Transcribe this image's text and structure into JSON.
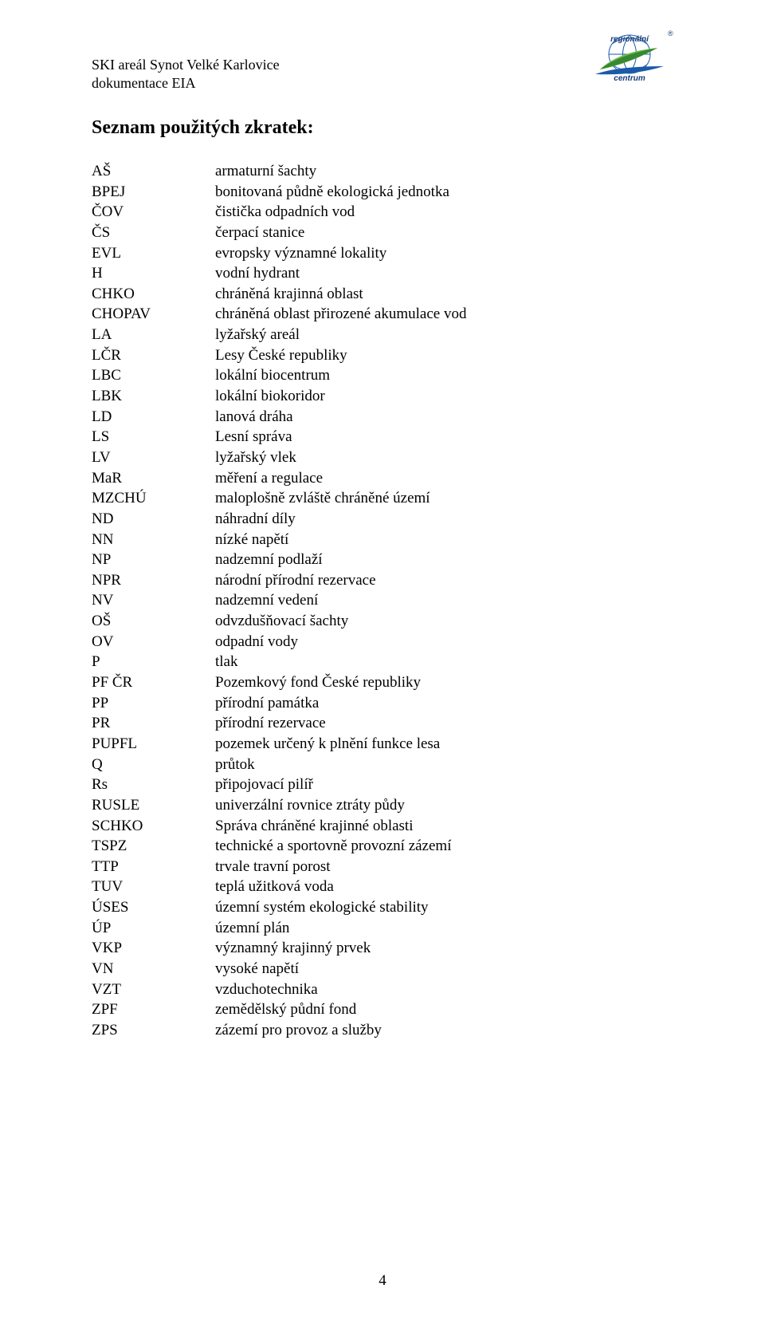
{
  "header": {
    "line1": "SKI areál Synot Velké Karlovice",
    "line2": "dokumentace EIA"
  },
  "logo": {
    "top_text": "regionální",
    "bottom_text": "centrum",
    "registered": "®",
    "primary_color": "#1a5aa8",
    "green1": "#6fbf44",
    "green2": "#2e7d32",
    "blue_wave": "#1a5aa8",
    "text_color": "#1a3d7a"
  },
  "heading": "Seznam použitých zkratek:",
  "abbreviations": {
    "items": [
      {
        "abbr": "AŠ",
        "desc": "armaturní šachty"
      },
      {
        "abbr": "BPEJ",
        "desc": "bonitovaná půdně ekologická jednotka"
      },
      {
        "abbr": "ČOV",
        "desc": "čistička odpadních vod"
      },
      {
        "abbr": "ČS",
        "desc": "čerpací stanice"
      },
      {
        "abbr": "EVL",
        "desc": "evropsky významné lokality"
      },
      {
        "abbr": "H",
        "desc": "vodní hydrant"
      },
      {
        "abbr": "CHKO",
        "desc": "chráněná krajinná oblast"
      },
      {
        "abbr": "CHOPAV",
        "desc": "chráněná oblast přirozené akumulace vod"
      },
      {
        "abbr": "LA",
        "desc": "lyžařský areál"
      },
      {
        "abbr": "LČR",
        "desc": "Lesy České republiky"
      },
      {
        "abbr": "LBC",
        "desc": "lokální biocentrum"
      },
      {
        "abbr": "LBK",
        "desc": "lokální biokoridor"
      },
      {
        "abbr": "LD",
        "desc": "lanová dráha"
      },
      {
        "abbr": "LS",
        "desc": "Lesní správa"
      },
      {
        "abbr": "LV",
        "desc": "lyžařský vlek"
      },
      {
        "abbr": "MaR",
        "desc": "měření a regulace"
      },
      {
        "abbr": "MZCHÚ",
        "desc": "maloplošně zvláště chráněné území"
      },
      {
        "abbr": "ND",
        "desc": "náhradní díly"
      },
      {
        "abbr": "NN",
        "desc": "nízké napětí"
      },
      {
        "abbr": "NP",
        "desc": "nadzemní podlaží"
      },
      {
        "abbr": "NPR",
        "desc": "národní přírodní rezervace"
      },
      {
        "abbr": "NV",
        "desc": "nadzemní vedení"
      },
      {
        "abbr": "OŠ",
        "desc": "odvzdušňovací šachty"
      },
      {
        "abbr": "OV",
        "desc": "odpadní vody"
      },
      {
        "abbr": "P",
        "desc": "tlak"
      },
      {
        "abbr": "PF ČR",
        "desc": "Pozemkový fond České republiky"
      },
      {
        "abbr": "PP",
        "desc": "přírodní památka"
      },
      {
        "abbr": "PR",
        "desc": "přírodní rezervace"
      },
      {
        "abbr": "PUPFL",
        "desc": "pozemek určený k plnění funkce lesa"
      },
      {
        "abbr": "Q",
        "desc": "průtok"
      },
      {
        "abbr": "Rs",
        "desc": "připojovací pilíř"
      },
      {
        "abbr": "RUSLE",
        "desc": "univerzální rovnice ztráty půdy"
      },
      {
        "abbr": "SCHKO",
        "desc": "Správa chráněné krajinné oblasti"
      },
      {
        "abbr": "TSPZ",
        "desc": "technické a sportovně provozní zázemí"
      },
      {
        "abbr": "TTP",
        "desc": "trvale travní porost"
      },
      {
        "abbr": "TUV",
        "desc": "teplá užitková voda"
      },
      {
        "abbr": "ÚSES",
        "desc": "územní systém ekologické stability"
      },
      {
        "abbr": "ÚP",
        "desc": "územní plán"
      },
      {
        "abbr": "VKP",
        "desc": "významný krajinný prvek"
      },
      {
        "abbr": "VN",
        "desc": "vysoké napětí"
      },
      {
        "abbr": "VZT",
        "desc": "vzduchotechnika"
      },
      {
        "abbr": "ZPF",
        "desc": "zemědělský půdní fond"
      },
      {
        "abbr": "ZPS",
        "desc": "zázemí pro provoz a služby"
      }
    ]
  },
  "page_number": "4"
}
